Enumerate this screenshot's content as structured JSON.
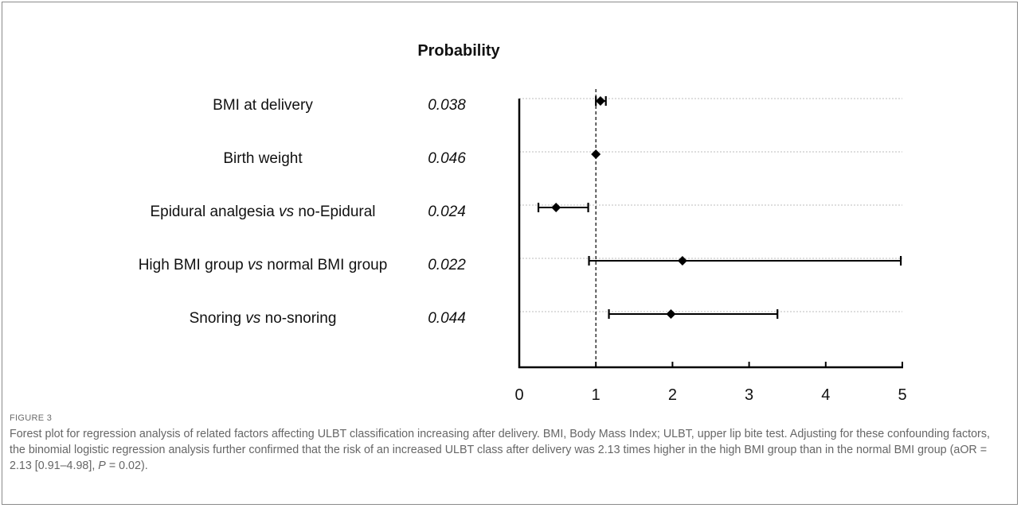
{
  "chart_data": {
    "type": "forest",
    "header": "Probability",
    "rows": [
      {
        "label_pre": "BMI at delivery",
        "label_vs": "",
        "label_post": "",
        "p": "0.038",
        "or": 1.06,
        "lo": 1.0,
        "hi": 1.13
      },
      {
        "label_pre": "Birth weight",
        "label_vs": "",
        "label_post": "",
        "p": "0.046",
        "or": 1.0,
        "lo": 1.0,
        "hi": 1.0
      },
      {
        "label_pre": "Epidural analgesia ",
        "label_vs": "vs",
        "label_post": " no-Epidural",
        "p": "0.024",
        "or": 0.48,
        "lo": 0.25,
        "hi": 0.9
      },
      {
        "label_pre": "High BMI group ",
        "label_vs": "vs",
        "label_post": " normal BMI group",
        "p": "0.022",
        "or": 2.13,
        "lo": 0.91,
        "hi": 4.98
      },
      {
        "label_pre": "Snoring ",
        "label_vs": "vs",
        "label_post": " no-snoring",
        "p": "0.044",
        "or": 1.98,
        "lo": 1.17,
        "hi": 3.37
      }
    ],
    "xlim": [
      0,
      5
    ],
    "xticks": [
      "0",
      "1",
      "2",
      "3",
      "4",
      "5"
    ],
    "reference_line": 1,
    "grid": "horizontal dotted"
  },
  "caption": {
    "figure_label": "FIGURE 3",
    "text_a": "Forest plot for regression analysis of related factors affecting ULBT classification increasing after delivery. BMI, Body Mass Index; ULBT, upper lip bite test. Adjusting for these confounding factors, the binomial logistic regression analysis further confirmed that the risk of an increased ULBT class after delivery was 2.13 times higher in the high BMI group than in the normal BMI group (aOR = 2.13 [0.91–4.98], ",
    "text_p": "P",
    "text_b": " = 0.02)."
  }
}
